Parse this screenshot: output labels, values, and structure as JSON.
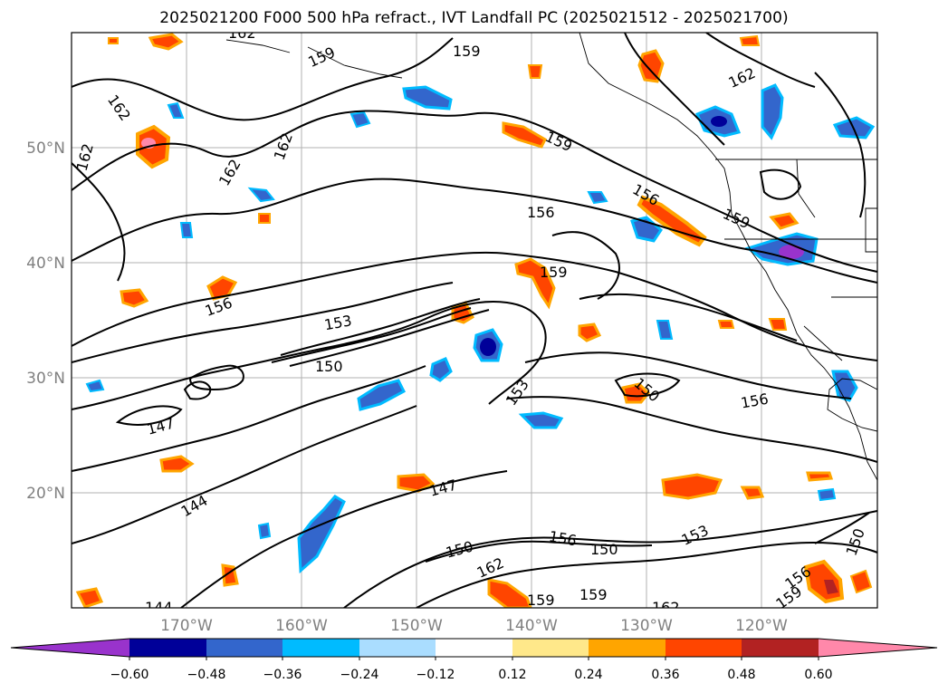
{
  "title": "2025021200 F000 500 hPa refract., IVT Landfall PC (2025021512 - 2025021700)",
  "map": {
    "lat_labels": [
      "50°N",
      "40°N",
      "30°N",
      "20°N"
    ],
    "lon_labels": [
      "170°W",
      "160°W",
      "150°W",
      "140°W",
      "130°W",
      "120°W"
    ],
    "contour_labels": [
      "162",
      "159",
      "159",
      "162",
      "162",
      "162",
      "162",
      "162",
      "159",
      "156",
      "156",
      "159",
      "159",
      "156",
      "153",
      "150",
      "153",
      "150",
      "156",
      "147",
      "147",
      "144",
      "150",
      "156",
      "153",
      "150",
      "162",
      "159",
      "159",
      "156",
      "159",
      "150",
      "144",
      "162"
    ]
  },
  "colorbar": {
    "tick_labels": [
      "−0.60",
      "−0.48",
      "−0.36",
      "−0.24",
      "−0.12",
      "0.12",
      "0.24",
      "0.36",
      "0.48",
      "0.60"
    ],
    "colors": [
      "#9933cc",
      "#000099",
      "#3366cc",
      "#00bbff",
      "#aaddff",
      "#ffffff",
      "#ffe88a",
      "#ffa500",
      "#ff4500",
      "#b22222",
      "#ff88aa"
    ]
  }
}
